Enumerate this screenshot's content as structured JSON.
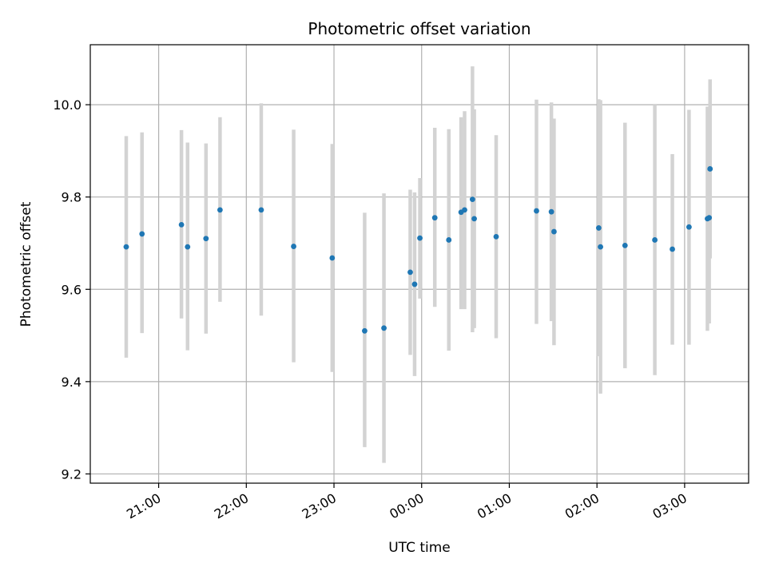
{
  "chart_data": {
    "type": "scatter",
    "title": "Photometric offset variation",
    "xlabel": "UTC time",
    "ylabel": "Photometric offset",
    "x_unit": "UTC time (hours after 00:00 of the second night; negative = previous evening)",
    "xlim": [
      -3.78,
      3.73
    ],
    "ylim": [
      9.18,
      10.13
    ],
    "grid": true,
    "colors": {
      "point": "#1f77b4",
      "errorbar": "#d3d3d3",
      "grid": "#b0b0b0"
    },
    "x_ticks": [
      {
        "value": -3,
        "label": "21:00"
      },
      {
        "value": -2,
        "label": "22:00"
      },
      {
        "value": -1,
        "label": "23:00"
      },
      {
        "value": 0,
        "label": "00:00"
      },
      {
        "value": 1,
        "label": "01:00"
      },
      {
        "value": 2,
        "label": "02:00"
      },
      {
        "value": 3,
        "label": "03:00"
      }
    ],
    "y_ticks": [
      {
        "value": 9.2,
        "label": "9.2"
      },
      {
        "value": 9.4,
        "label": "9.4"
      },
      {
        "value": 9.6,
        "label": "9.6"
      },
      {
        "value": 9.8,
        "label": "9.8"
      },
      {
        "value": 10.0,
        "label": "10.0"
      }
    ],
    "series": [
      {
        "points": [
          {
            "x": -3.37,
            "y": 9.692,
            "low": 9.452,
            "high": 9.932
          },
          {
            "x": -3.19,
            "y": 9.72,
            "low": 9.505,
            "high": 9.94
          },
          {
            "x": -2.74,
            "y": 9.74,
            "low": 9.537,
            "high": 9.945
          },
          {
            "x": -2.67,
            "y": 9.692,
            "low": 9.468,
            "high": 9.918
          },
          {
            "x": -2.46,
            "y": 9.71,
            "low": 9.504,
            "high": 9.916
          },
          {
            "x": -2.3,
            "y": 9.772,
            "low": 9.573,
            "high": 9.973
          },
          {
            "x": -1.83,
            "y": 9.772,
            "low": 9.543,
            "high": 10.003
          },
          {
            "x": -1.46,
            "y": 9.693,
            "low": 9.442,
            "high": 9.946
          },
          {
            "x": -1.02,
            "y": 9.668,
            "low": 9.421,
            "high": 9.915
          },
          {
            "x": -0.65,
            "y": 9.51,
            "low": 9.258,
            "high": 9.766
          },
          {
            "x": -0.43,
            "y": 9.516,
            "low": 9.224,
            "high": 9.808
          },
          {
            "x": -0.13,
            "y": 9.637,
            "low": 9.458,
            "high": 9.816
          },
          {
            "x": -0.08,
            "y": 9.611,
            "low": 9.412,
            "high": 9.81
          },
          {
            "x": -0.02,
            "y": 9.711,
            "low": 9.58,
            "high": 9.841
          },
          {
            "x": 0.15,
            "y": 9.755,
            "low": 9.562,
            "high": 9.95
          },
          {
            "x": 0.31,
            "y": 9.707,
            "low": 9.467,
            "high": 9.947
          },
          {
            "x": 0.45,
            "y": 9.767,
            "low": 9.557,
            "high": 9.973
          },
          {
            "x": 0.49,
            "y": 9.772,
            "low": 9.557,
            "high": 9.986
          },
          {
            "x": 0.58,
            "y": 9.795,
            "low": 9.507,
            "high": 10.083
          },
          {
            "x": 0.6,
            "y": 9.753,
            "low": 9.516,
            "high": 9.99
          },
          {
            "x": 0.85,
            "y": 9.714,
            "low": 9.494,
            "high": 9.934
          },
          {
            "x": 1.31,
            "y": 9.77,
            "low": 9.525,
            "high": 10.011
          },
          {
            "x": 1.48,
            "y": 9.768,
            "low": 9.531,
            "high": 10.005
          },
          {
            "x": 1.51,
            "y": 9.725,
            "low": 9.479,
            "high": 9.97
          },
          {
            "x": 2.02,
            "y": 9.733,
            "low": 9.455,
            "high": 10.012
          },
          {
            "x": 2.04,
            "y": 9.692,
            "low": 9.374,
            "high": 10.01
          },
          {
            "x": 2.32,
            "y": 9.695,
            "low": 9.429,
            "high": 9.961
          },
          {
            "x": 2.66,
            "y": 9.707,
            "low": 9.414,
            "high": 10.0
          },
          {
            "x": 2.86,
            "y": 9.687,
            "low": 9.48,
            "high": 9.893
          },
          {
            "x": 3.05,
            "y": 9.735,
            "low": 9.48,
            "high": 9.989
          },
          {
            "x": 3.26,
            "y": 9.753,
            "low": 9.51,
            "high": 9.996
          },
          {
            "x": 3.28,
            "y": 9.755,
            "low": 9.526,
            "high": 9.985
          },
          {
            "x": 3.29,
            "y": 9.861,
            "low": 9.667,
            "high": 10.055
          }
        ]
      }
    ]
  }
}
